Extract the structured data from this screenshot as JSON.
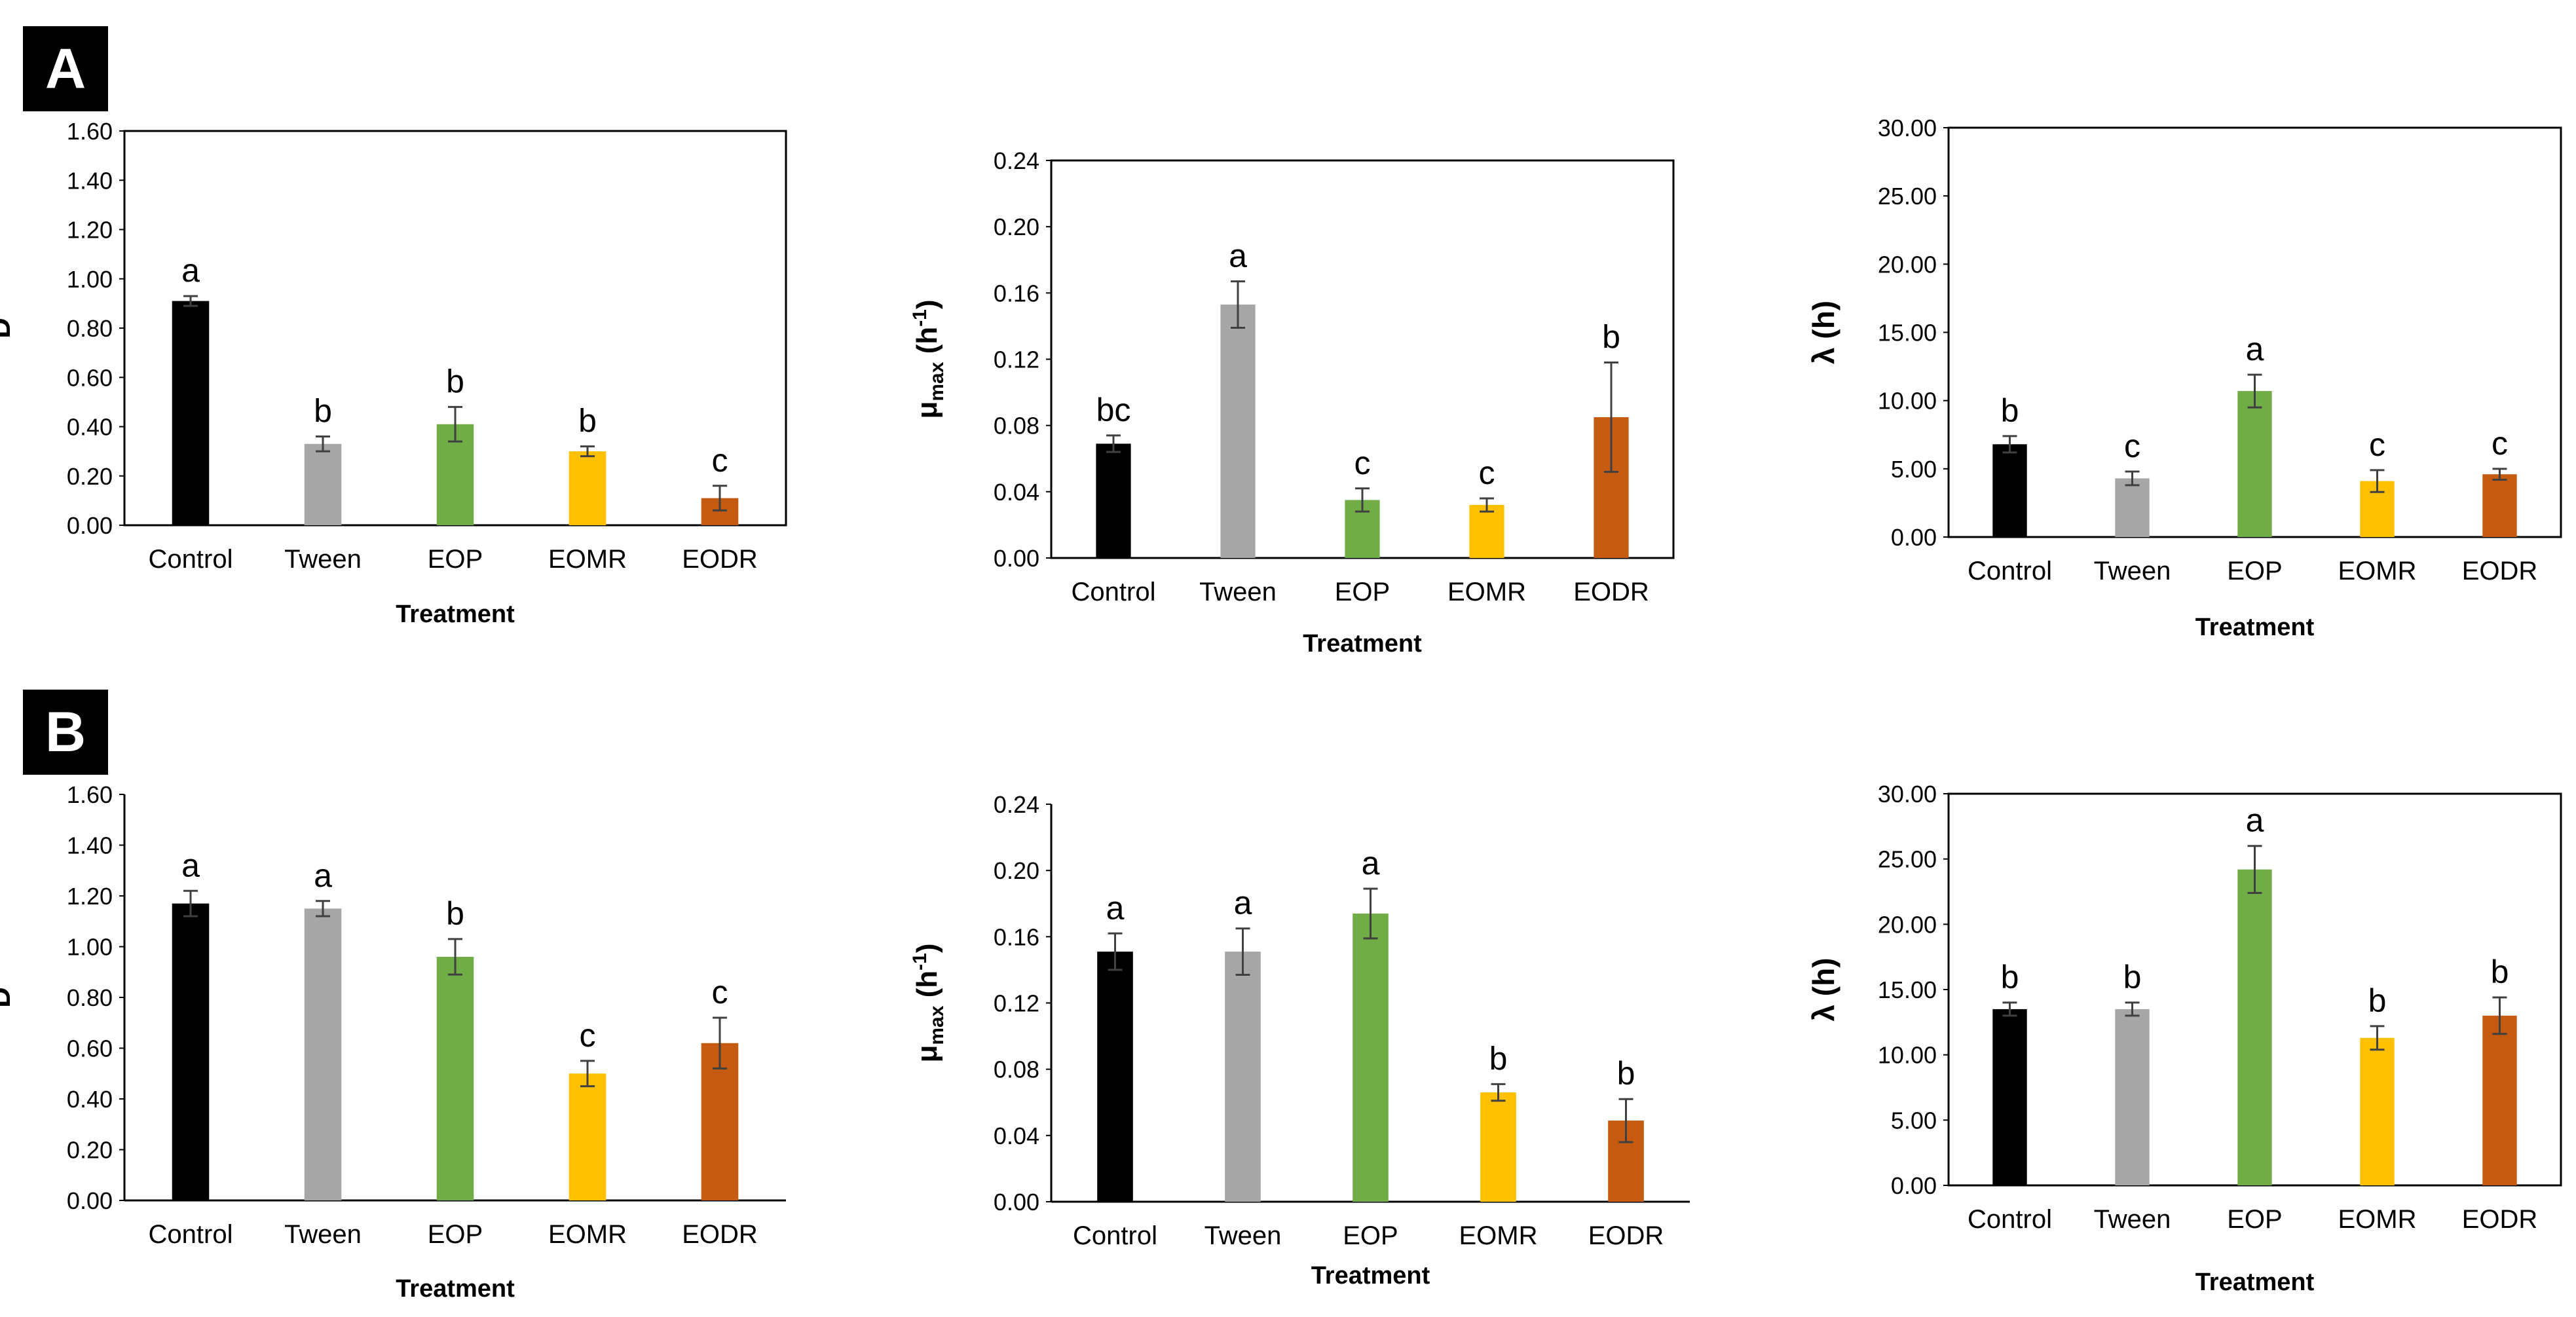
{
  "panels": {
    "a": "A",
    "b": "B"
  },
  "treatment_colors": [
    "#000000",
    "#a6a6a6",
    "#70ad47",
    "#ffc000",
    "#c55a11"
  ],
  "chart_data": [
    {
      "id": "A-D",
      "panel": "A",
      "type": "bar",
      "title": "",
      "xlabel": "Treatment",
      "ylabel": "D",
      "categories": [
        "Control",
        "Tween",
        "EOP",
        "EOMR",
        "EODR"
      ],
      "values": [
        0.91,
        0.33,
        0.41,
        0.3,
        0.11
      ],
      "errors": [
        0.02,
        0.03,
        0.07,
        0.02,
        0.05
      ],
      "letters": [
        "a",
        "b",
        "b",
        "b",
        "c"
      ],
      "ylim": [
        0,
        1.6
      ],
      "ticks": [
        "0.00",
        "0.20",
        "0.40",
        "0.60",
        "0.80",
        "1.00",
        "1.20",
        "1.40",
        "1.60"
      ]
    },
    {
      "id": "A-mu",
      "panel": "A",
      "type": "bar",
      "title": "",
      "xlabel": "Treatment",
      "ylabel": "μmax (h-1)",
      "ylabel_main": "μ",
      "ylabel_sub": "max",
      "ylabel_unit": " (h",
      "ylabel_sup": "-1",
      "ylabel_close": ")",
      "categories": [
        "Control",
        "Tween",
        "EOP",
        "EOMR",
        "EODR"
      ],
      "values": [
        0.069,
        0.153,
        0.035,
        0.032,
        0.085
      ],
      "errors": [
        0.005,
        0.014,
        0.007,
        0.004,
        0.033
      ],
      "letters": [
        "bc",
        "a",
        "c",
        "c",
        "b"
      ],
      "ylim": [
        0,
        0.24
      ],
      "ticks": [
        "0.00",
        "0.04",
        "0.08",
        "0.12",
        "0.16",
        "0.20",
        "0.24"
      ]
    },
    {
      "id": "A-lambda",
      "panel": "A",
      "type": "bar",
      "title": "",
      "xlabel": "Treatment",
      "ylabel": "λ (h)",
      "categories": [
        "Control",
        "Tween",
        "EOP",
        "EOMR",
        "EODR"
      ],
      "values": [
        6.8,
        4.3,
        10.7,
        4.1,
        4.6
      ],
      "errors": [
        0.6,
        0.5,
        1.2,
        0.8,
        0.4
      ],
      "letters": [
        "b",
        "c",
        "a",
        "c",
        "c"
      ],
      "ylim": [
        0,
        30
      ],
      "ticks": [
        "0.00",
        "5.00",
        "10.00",
        "15.00",
        "20.00",
        "25.00",
        "30.00"
      ]
    },
    {
      "id": "B-D",
      "panel": "B",
      "type": "bar",
      "title": "",
      "xlabel": "Treatment",
      "ylabel": "D",
      "categories": [
        "Control",
        "Tween",
        "EOP",
        "EOMR",
        "EODR"
      ],
      "values": [
        1.17,
        1.15,
        0.96,
        0.5,
        0.62
      ],
      "errors": [
        0.05,
        0.03,
        0.07,
        0.05,
        0.1
      ],
      "letters": [
        "a",
        "a",
        "b",
        "c",
        "c"
      ],
      "ylim": [
        0,
        1.6
      ],
      "ticks": [
        "0.00",
        "0.20",
        "0.40",
        "0.60",
        "0.80",
        "1.00",
        "1.20",
        "1.40",
        "1.60"
      ]
    },
    {
      "id": "B-mu",
      "panel": "B",
      "type": "bar",
      "title": "",
      "xlabel": "Treatment",
      "ylabel": "μmax (h-1)",
      "ylabel_main": "μ",
      "ylabel_sub": "max",
      "ylabel_unit": " (h",
      "ylabel_sup": "-1",
      "ylabel_close": ")",
      "categories": [
        "Control",
        "Tween",
        "EOP",
        "EOMR",
        "EODR"
      ],
      "values": [
        0.151,
        0.151,
        0.174,
        0.066,
        0.049
      ],
      "errors": [
        0.011,
        0.014,
        0.015,
        0.005,
        0.013
      ],
      "letters": [
        "a",
        "a",
        "a",
        "b",
        "b"
      ],
      "ylim": [
        0,
        0.24
      ],
      "ticks": [
        "0.00",
        "0.04",
        "0.08",
        "0.12",
        "0.16",
        "0.20",
        "0.24"
      ]
    },
    {
      "id": "B-lambda",
      "panel": "B",
      "type": "bar",
      "title": "",
      "xlabel": "Treatment",
      "ylabel": "λ (h)",
      "categories": [
        "Control",
        "Tween",
        "EOP",
        "EOMR",
        "EODR"
      ],
      "values": [
        13.5,
        13.5,
        24.2,
        11.3,
        13.0
      ],
      "errors": [
        0.5,
        0.5,
        1.8,
        0.9,
        1.4
      ],
      "letters": [
        "b",
        "b",
        "a",
        "b",
        "b"
      ],
      "ylim": [
        0,
        30
      ],
      "ticks": [
        "0.00",
        "5.00",
        "10.00",
        "15.00",
        "20.00",
        "25.00",
        "30.00"
      ]
    }
  ]
}
